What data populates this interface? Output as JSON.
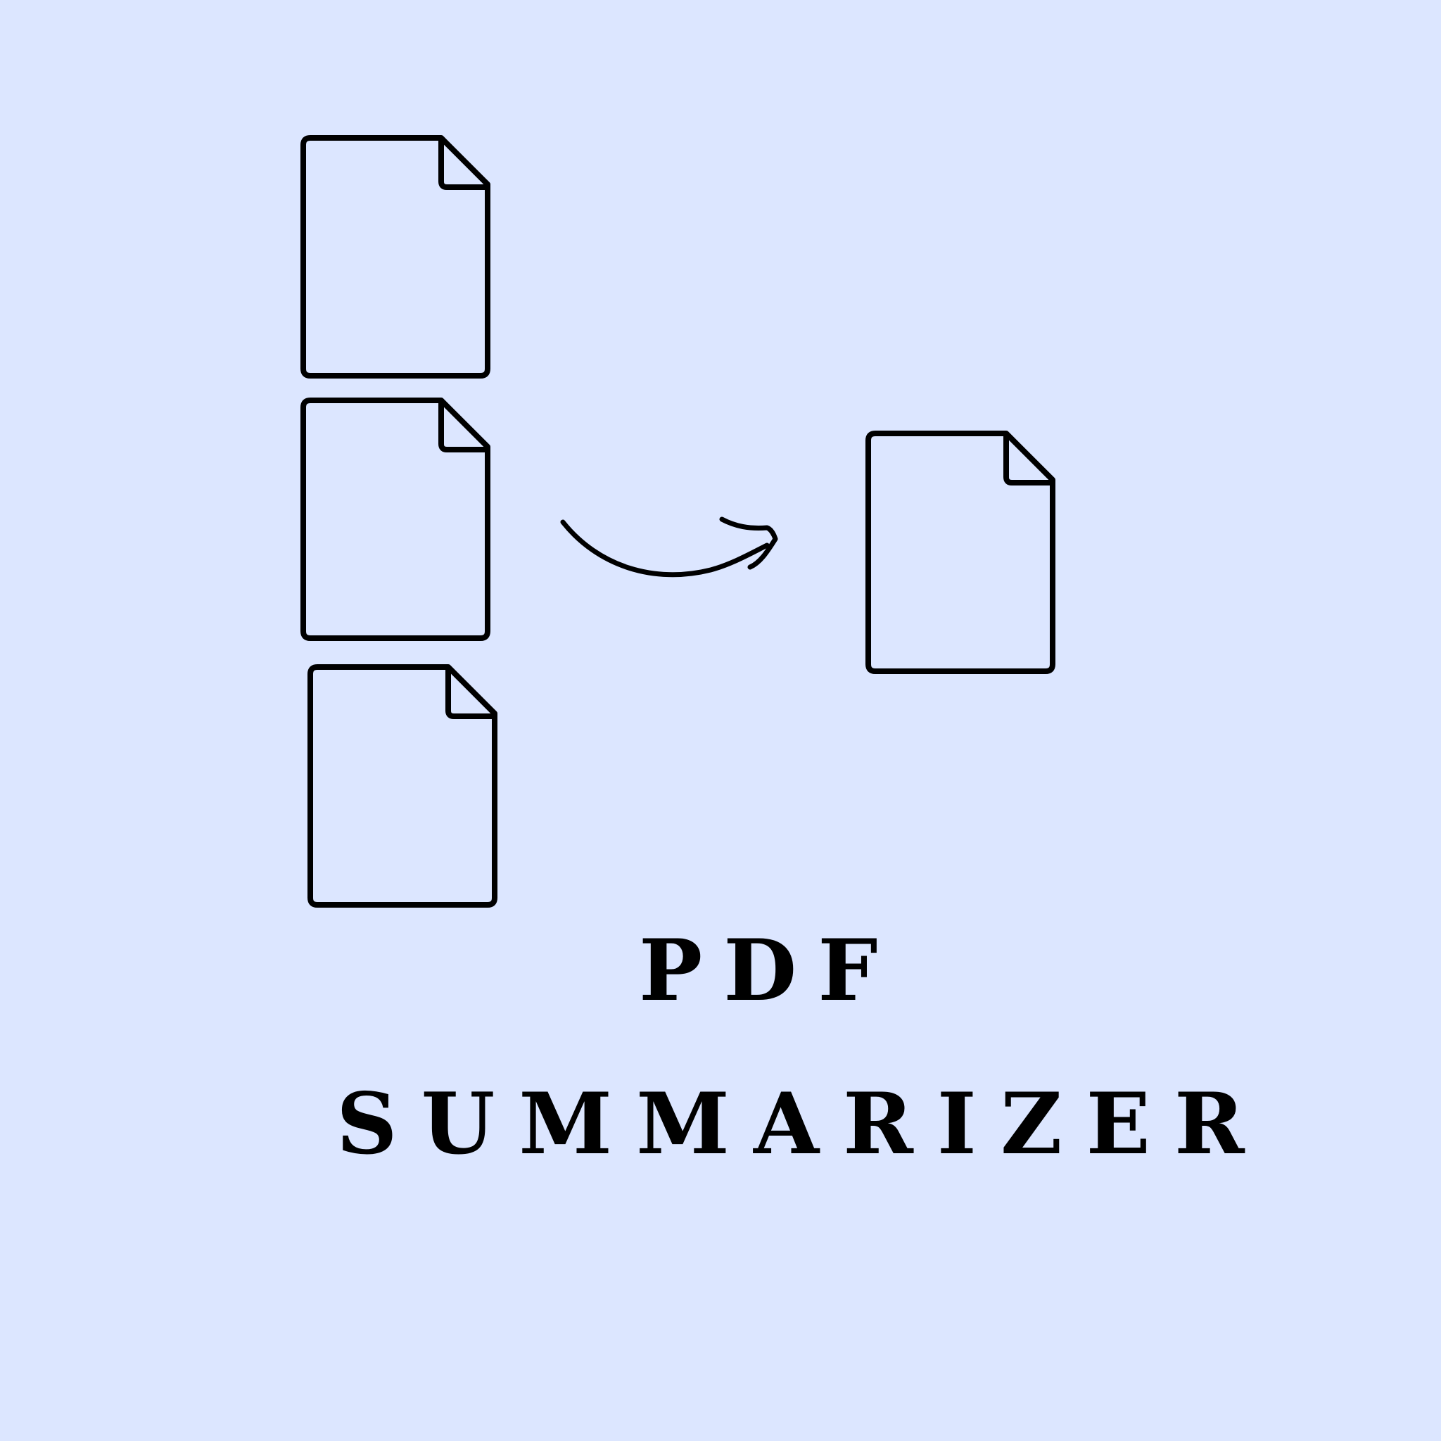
{
  "title": {
    "line1": "PDF",
    "line2": "SUMMARIZER"
  },
  "icons": {
    "source_documents": [
      "document-icon",
      "document-icon",
      "document-icon"
    ],
    "arrow": "curved-arrow-icon",
    "result_document": "document-icon"
  },
  "colors": {
    "background": "#dce6ff",
    "stroke": "#000000"
  }
}
